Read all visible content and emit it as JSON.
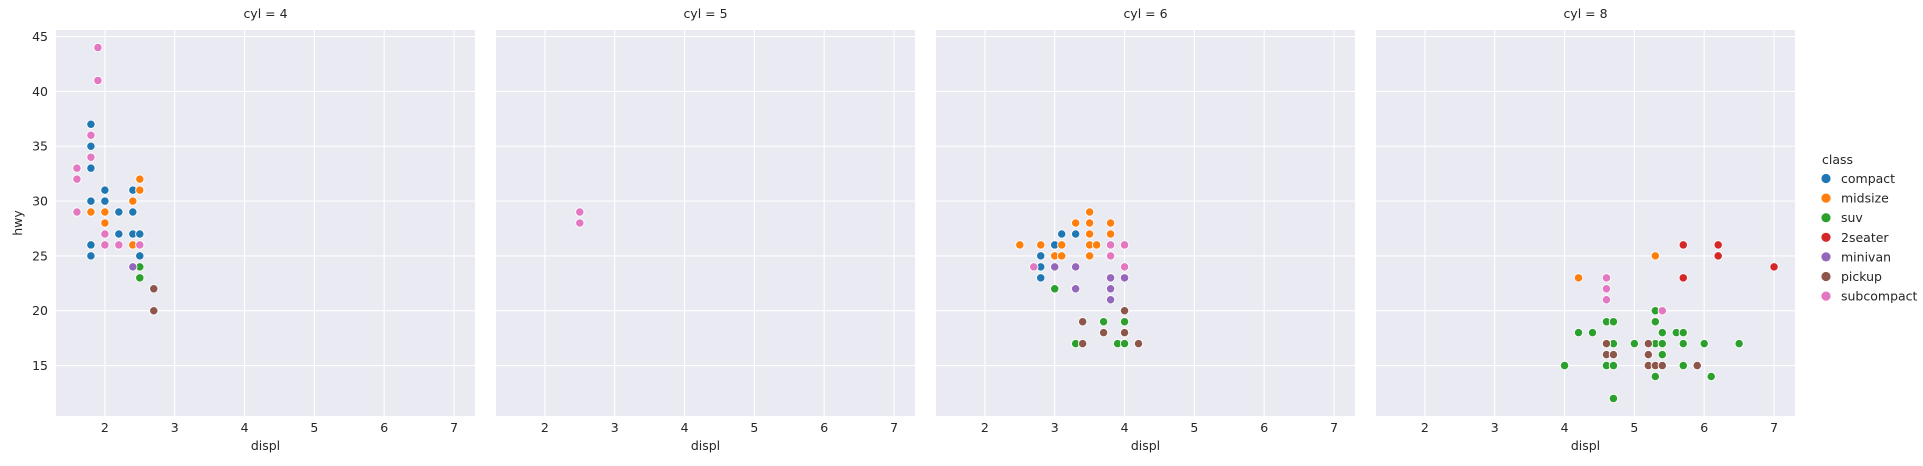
{
  "chart_data": {
    "type": "scatter",
    "facet_var": "cyl",
    "xlabel": "displ",
    "ylabel": "hwy",
    "xlim": [
      1.3,
      7.3
    ],
    "ylim": [
      10.4,
      45.6
    ],
    "xticks": [
      2,
      3,
      4,
      5,
      6,
      7
    ],
    "yticks": [
      15,
      20,
      25,
      30,
      35,
      40,
      45
    ],
    "grid": true,
    "legend": {
      "title": "class",
      "placement": "right",
      "entries": [
        {
          "name": "compact",
          "color": "#1f77b4"
        },
        {
          "name": "midsize",
          "color": "#ff7f0e"
        },
        {
          "name": "suv",
          "color": "#2ca02c"
        },
        {
          "name": "2seater",
          "color": "#d62728"
        },
        {
          "name": "minivan",
          "color": "#9467bd"
        },
        {
          "name": "pickup",
          "color": "#8c564b"
        },
        {
          "name": "subcompact",
          "color": "#e377c2"
        }
      ]
    },
    "panels": [
      {
        "title": "cyl = 4",
        "series": [
          {
            "name": "compact",
            "points": [
              [
                1.8,
                37
              ],
              [
                1.8,
                35
              ],
              [
                1.8,
                33
              ],
              [
                1.8,
                30
              ],
              [
                2.0,
                31
              ],
              [
                2.0,
                30
              ],
              [
                1.8,
                26
              ],
              [
                1.8,
                25
              ],
              [
                2.2,
                29
              ],
              [
                2.2,
                27
              ],
              [
                2.4,
                31
              ],
              [
                2.4,
                29
              ],
              [
                2.4,
                27
              ],
              [
                2.5,
                27
              ],
              [
                2.5,
                25
              ],
              [
                2.5,
                26
              ]
            ]
          },
          {
            "name": "midsize",
            "points": [
              [
                1.8,
                29
              ],
              [
                2.0,
                29
              ],
              [
                2.0,
                28
              ],
              [
                2.4,
                30
              ],
              [
                2.4,
                26
              ],
              [
                2.5,
                32
              ],
              [
                2.5,
                31
              ],
              [
                2.5,
                26
              ]
            ]
          },
          {
            "name": "suv",
            "points": [
              [
                2.5,
                24
              ],
              [
                2.5,
                23
              ]
            ]
          },
          {
            "name": "minivan",
            "points": [
              [
                2.4,
                24
              ]
            ]
          },
          {
            "name": "pickup",
            "points": [
              [
                2.7,
                22
              ],
              [
                2.7,
                20
              ]
            ]
          },
          {
            "name": "subcompact",
            "points": [
              [
                1.9,
                44
              ],
              [
                1.9,
                41
              ],
              [
                1.8,
                36
              ],
              [
                1.8,
                34
              ],
              [
                1.6,
                33
              ],
              [
                1.6,
                32
              ],
              [
                1.6,
                29
              ],
              [
                2.0,
                27
              ],
              [
                2.0,
                26
              ],
              [
                2.2,
                26
              ],
              [
                2.5,
                26
              ]
            ]
          }
        ]
      },
      {
        "title": "cyl = 5",
        "series": [
          {
            "name": "subcompact",
            "points": [
              [
                2.5,
                29
              ],
              [
                2.5,
                28
              ]
            ]
          }
        ]
      },
      {
        "title": "cyl = 6",
        "series": [
          {
            "name": "compact",
            "points": [
              [
                2.8,
                25
              ],
              [
                2.8,
                24
              ],
              [
                2.8,
                23
              ],
              [
                3.0,
                26
              ],
              [
                3.1,
                27
              ],
              [
                3.3,
                27
              ],
              [
                3.0,
                25
              ]
            ]
          },
          {
            "name": "midsize",
            "points": [
              [
                2.5,
                26
              ],
              [
                2.8,
                26
              ],
              [
                3.0,
                25
              ],
              [
                3.1,
                25
              ],
              [
                3.1,
                26
              ],
              [
                3.3,
                28
              ],
              [
                3.5,
                29
              ],
              [
                3.5,
                28
              ],
              [
                3.5,
                27
              ],
              [
                3.5,
                26
              ],
              [
                3.5,
                25
              ],
              [
                3.6,
                26
              ],
              [
                3.8,
                28
              ],
              [
                3.8,
                27
              ],
              [
                3.8,
                26
              ],
              [
                3.8,
                25
              ]
            ]
          },
          {
            "name": "suv",
            "points": [
              [
                3.0,
                22
              ],
              [
                3.3,
                17
              ],
              [
                3.7,
                19
              ],
              [
                3.9,
                17
              ],
              [
                4.0,
                19
              ],
              [
                4.0,
                18
              ],
              [
                4.0,
                17
              ]
            ]
          },
          {
            "name": "minivan",
            "points": [
              [
                2.7,
                24
              ],
              [
                3.0,
                24
              ],
              [
                3.3,
                24
              ],
              [
                3.3,
                22
              ],
              [
                3.8,
                23
              ],
              [
                3.8,
                22
              ],
              [
                3.8,
                21
              ],
              [
                4.0,
                24
              ],
              [
                4.0,
                23
              ]
            ]
          },
          {
            "name": "pickup",
            "points": [
              [
                3.4,
                19
              ],
              [
                3.4,
                17
              ],
              [
                3.7,
                18
              ],
              [
                4.0,
                20
              ],
              [
                4.0,
                18
              ],
              [
                4.2,
                17
              ]
            ]
          },
          {
            "name": "subcompact",
            "points": [
              [
                3.8,
                26
              ],
              [
                3.8,
                25
              ],
              [
                4.0,
                26
              ],
              [
                4.0,
                24
              ],
              [
                2.7,
                24
              ]
            ]
          }
        ]
      },
      {
        "title": "cyl = 8",
        "series": [
          {
            "name": "midsize",
            "points": [
              [
                4.2,
                23
              ],
              [
                5.3,
                25
              ]
            ]
          },
          {
            "name": "suv",
            "points": [
              [
                4.0,
                15
              ],
              [
                4.2,
                18
              ],
              [
                4.4,
                18
              ],
              [
                4.6,
                19
              ],
              [
                4.6,
                17
              ],
              [
                4.6,
                15
              ],
              [
                4.7,
                19
              ],
              [
                4.7,
                17
              ],
              [
                4.7,
                15
              ],
              [
                4.7,
                12
              ],
              [
                5.0,
                17
              ],
              [
                5.3,
                20
              ],
              [
                5.3,
                19
              ],
              [
                5.3,
                17
              ],
              [
                5.3,
                14
              ],
              [
                5.4,
                18
              ],
              [
                5.4,
                17
              ],
              [
                5.4,
                16
              ],
              [
                5.4,
                15
              ],
              [
                5.6,
                18
              ],
              [
                5.7,
                18
              ],
              [
                5.7,
                17
              ],
              [
                5.7,
                15
              ],
              [
                6.0,
                17
              ],
              [
                6.1,
                14
              ],
              [
                6.5,
                17
              ]
            ]
          },
          {
            "name": "2seater",
            "points": [
              [
                5.7,
                26
              ],
              [
                5.7,
                23
              ],
              [
                6.2,
                26
              ],
              [
                6.2,
                25
              ],
              [
                7.0,
                24
              ]
            ]
          },
          {
            "name": "pickup",
            "points": [
              [
                4.6,
                17
              ],
              [
                4.6,
                16
              ],
              [
                4.7,
                16
              ],
              [
                5.2,
                17
              ],
              [
                5.2,
                16
              ],
              [
                5.2,
                15
              ],
              [
                5.3,
                15
              ],
              [
                5.4,
                15
              ],
              [
                5.9,
                15
              ]
            ]
          },
          {
            "name": "subcompact",
            "points": [
              [
                4.6,
                23
              ],
              [
                4.6,
                22
              ],
              [
                4.6,
                21
              ],
              [
                5.4,
                20
              ]
            ]
          }
        ]
      }
    ]
  }
}
